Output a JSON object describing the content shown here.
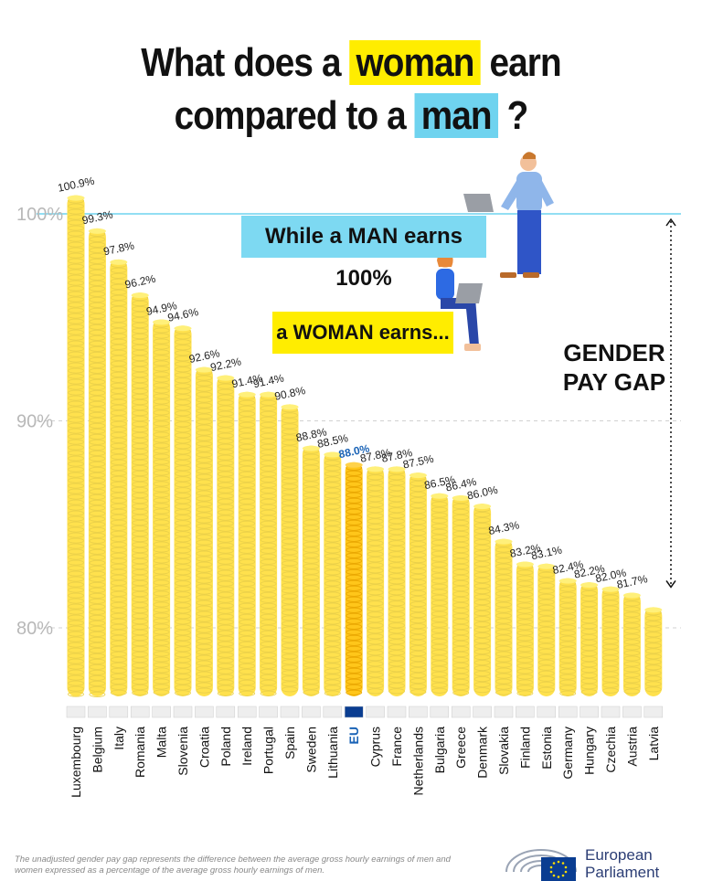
{
  "title": {
    "line1_pre": "What does a",
    "line1_hl": "woman",
    "line1_post": "earn",
    "line2_pre": "compared to a",
    "line2_hl": "man",
    "line2_post": "?"
  },
  "annotations": {
    "man_box": "While a MAN earns 100%",
    "woman_box": "a WOMAN earns...",
    "gap_line1": "GENDER",
    "gap_line2": "PAY GAP"
  },
  "footnote": "The unadjusted gender pay gap represents the difference between the average gross hourly earnings of men and women expressed as a percentage of the average gross hourly earnings of men.",
  "logo": {
    "line1": "European",
    "line2": "Parliament"
  },
  "colors": {
    "coin": "#ffe14d",
    "coin_eu": "#ffc61a",
    "line_100": "#6fd3ef",
    "highlight_eu": "#1a63b6"
  },
  "chart_data": {
    "type": "bar",
    "categories": [
      "Luxembourg",
      "Belgium",
      "Italy",
      "Romania",
      "Malta",
      "Slovenia",
      "Croatia",
      "Poland",
      "Ireland",
      "Portugal",
      "Spain",
      "Sweden",
      "Lithuania",
      "EU",
      "Cyprus",
      "France",
      "Netherlands",
      "Bulgaria",
      "Greece",
      "Denmark",
      "Slovakia",
      "Finland",
      "Estonia",
      "Germany",
      "Hungary",
      "Czechia",
      "Austria",
      "Latvia"
    ],
    "values": [
      100.9,
      99.3,
      97.8,
      96.2,
      94.9,
      94.6,
      92.6,
      92.2,
      91.4,
      91.4,
      90.8,
      88.8,
      88.5,
      88.0,
      87.8,
      87.8,
      87.5,
      86.5,
      86.4,
      86.0,
      84.3,
      83.2,
      83.1,
      82.4,
      82.2,
      82.0,
      81.7,
      81.0
    ],
    "value_labels": [
      "100.9%",
      "99.3%",
      "97.8%",
      "96.2%",
      "94.9%",
      "94.6%",
      "92.6%",
      "92.2%",
      "91.4%",
      "91.4%",
      "90.8%",
      "88.8%",
      "88.5%",
      "88.0%",
      "87.8%",
      "87.8%",
      "87.5%",
      "86.5%",
      "86.4%",
      "86.0%",
      "84.3%",
      "83.2%",
      "83.1%",
      "82.4%",
      "82.2%",
      "82.0%",
      "81.7%",
      ""
    ],
    "highlight": "EU",
    "yticks": [
      "100%",
      "90%",
      "80%"
    ],
    "ytick_values": [
      100,
      90,
      80
    ],
    "ylim": [
      76.8,
      101.5
    ],
    "reference_line": 100,
    "grid": true
  }
}
